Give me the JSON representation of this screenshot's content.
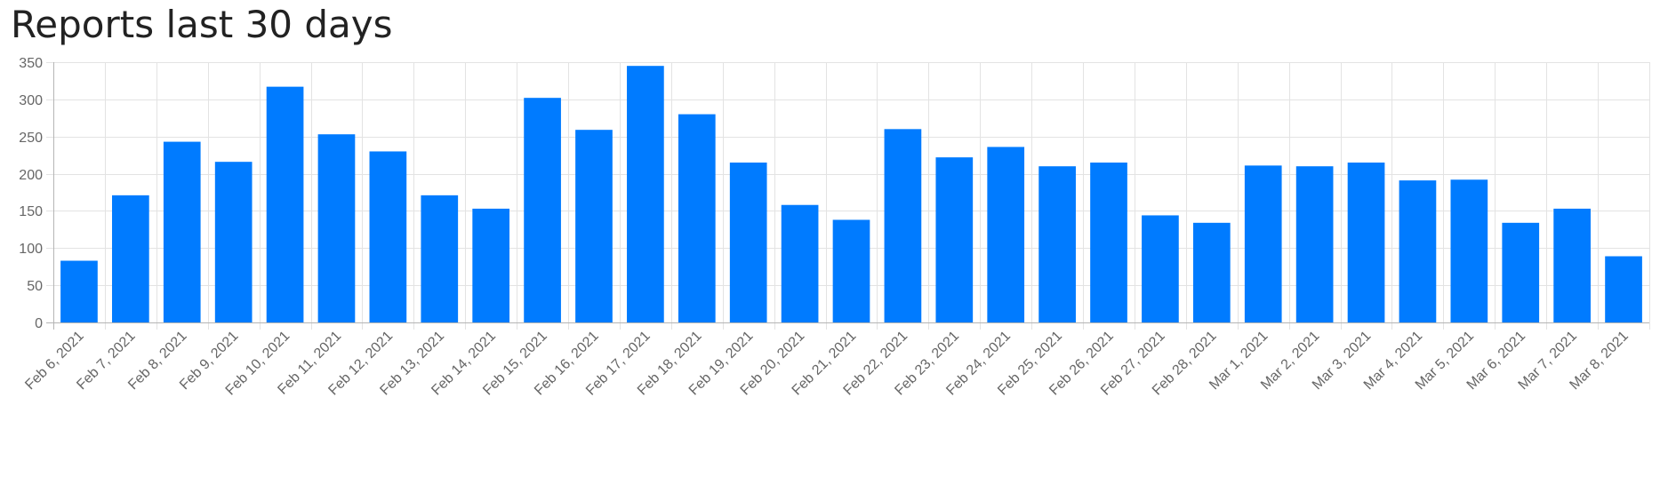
{
  "chart_data": {
    "type": "bar",
    "title": "Reports last 30 days",
    "xlabel": "",
    "ylabel": "",
    "ylim": [
      0,
      350
    ],
    "yticks": [
      0,
      50,
      100,
      150,
      200,
      250,
      300,
      350
    ],
    "grid": true,
    "legend": "none",
    "bar_color": "#007bff",
    "categories": [
      "Feb 6, 2021",
      "Feb 7, 2021",
      "Feb 8, 2021",
      "Feb 9, 2021",
      "Feb 10, 2021",
      "Feb 11, 2021",
      "Feb 12, 2021",
      "Feb 13, 2021",
      "Feb 14, 2021",
      "Feb 15, 2021",
      "Feb 16, 2021",
      "Feb 17, 2021",
      "Feb 18, 2021",
      "Feb 19, 2021",
      "Feb 20, 2021",
      "Feb 21, 2021",
      "Feb 22, 2021",
      "Feb 23, 2021",
      "Feb 24, 2021",
      "Feb 25, 2021",
      "Feb 26, 2021",
      "Feb 27, 2021",
      "Feb 28, 2021",
      "Mar 1, 2021",
      "Mar 2, 2021",
      "Mar 3, 2021",
      "Mar 4, 2021",
      "Mar 5, 2021",
      "Mar 6, 2021",
      "Mar 7, 2021",
      "Mar 8, 2021"
    ],
    "values": [
      83,
      171,
      243,
      216,
      317,
      253,
      230,
      171,
      153,
      302,
      259,
      345,
      280,
      215,
      158,
      138,
      260,
      222,
      236,
      210,
      215,
      144,
      134,
      211,
      210,
      215,
      191,
      192,
      134,
      153,
      89
    ]
  }
}
